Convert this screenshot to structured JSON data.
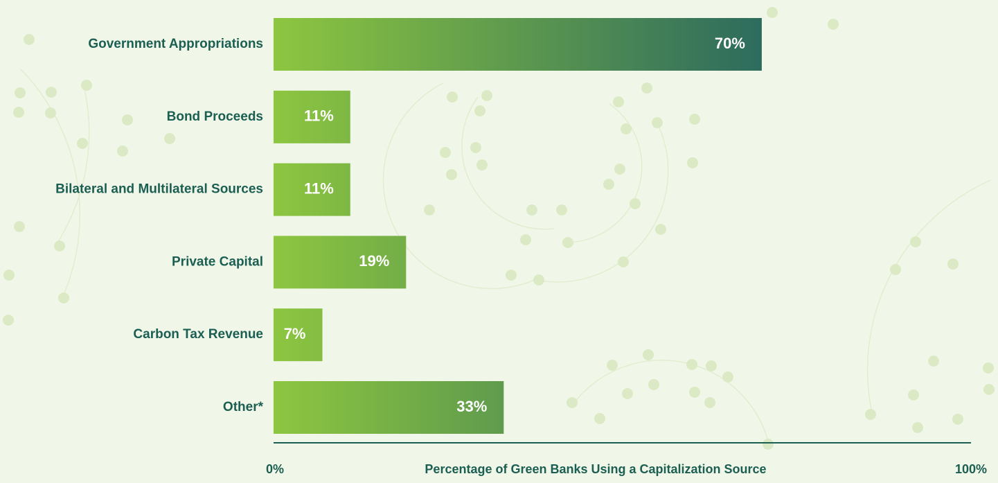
{
  "chart_data": {
    "type": "bar",
    "orientation": "horizontal",
    "categories": [
      "Government Appropriations",
      "Bond Proceeds",
      "Bilateral and Multilateral Sources",
      "Private Capital",
      "Carbon Tax Revenue",
      "Other*"
    ],
    "values": [
      70,
      11,
      11,
      19,
      7,
      33
    ],
    "value_labels": [
      "70%",
      "11%",
      "11%",
      "19%",
      "7%",
      "33%"
    ],
    "colors": [
      "#8dc63f",
      "#2d6b5e"
    ],
    "xlabel": "Percentage of Green Banks Using a Capitalization Source",
    "xlim": [
      0,
      100
    ],
    "xticks": [
      {
        "value": 0,
        "label": "0%"
      },
      {
        "value": 100,
        "label": "100%"
      }
    ]
  }
}
